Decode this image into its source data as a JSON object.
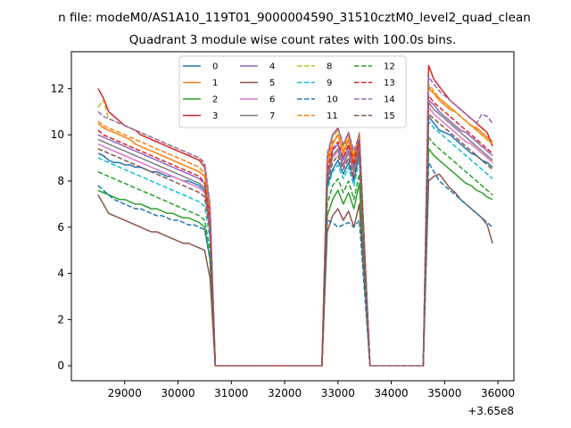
{
  "figure": {
    "suptitle": "n file: modeM0/AS1A10_119T01_9000004590_31510cztM0_level2_quad_clean",
    "axis_offset_label": "+3.65e8"
  },
  "chart_data": {
    "type": "line",
    "title": "Quadrant 3 module wise count rates with 100.0s bins.",
    "xlabel": "",
    "ylabel": "",
    "x_offset": 365000000,
    "xlim": [
      28000,
      36300
    ],
    "ylim": [
      -0.65,
      13.6
    ],
    "xticks": [
      29000,
      30000,
      31000,
      32000,
      33000,
      34000,
      35000,
      36000
    ],
    "yticks": [
      0,
      2,
      4,
      6,
      8,
      10,
      12
    ],
    "grid": false,
    "legend": {
      "placement": "top-center",
      "ncol": 4
    },
    "segments": [
      {
        "x_start": 28500,
        "x_end": 30600,
        "step": 100
      },
      {
        "x_start": 32800,
        "x_end": 33400,
        "step": 100
      },
      {
        "x_start": 34700,
        "x_end": 35900,
        "step": 100
      }
    ],
    "gap_points": [
      [
        30700,
        0
      ],
      [
        31000,
        0
      ],
      [
        32000,
        0
      ],
      [
        32700,
        0
      ],
      [
        33600,
        0
      ],
      [
        34000,
        0
      ],
      [
        34600,
        0
      ]
    ],
    "series": [
      {
        "name": "0",
        "color": "#1f77b4",
        "dash": "solid",
        "values": [
          [
            9.2,
            9.1,
            8.9,
            8.8,
            8.8,
            8.7,
            8.7,
            8.6,
            8.6,
            8.5,
            8.4,
            8.4,
            8.3,
            8.2,
            8.2,
            8.1,
            8.0,
            8.0,
            7.9,
            7.8,
            7.6,
            6.0
          ],
          [
            7.8,
            8.5,
            8.9,
            8.3,
            8.8,
            8.0,
            9.2
          ],
          [
            10.8,
            10.5,
            10.2,
            10.1,
            10.0,
            9.8,
            9.6,
            9.4,
            9.2,
            9.1,
            8.9,
            8.8,
            8.6
          ]
        ]
      },
      {
        "name": "1",
        "color": "#ff7f0e",
        "dash": "solid",
        "values": [
          [
            10.5,
            10.3,
            10.2,
            10.1,
            10.0,
            9.9,
            9.8,
            9.6,
            9.5,
            9.4,
            9.3,
            9.2,
            9.1,
            9.0,
            8.9,
            8.8,
            8.7,
            8.6,
            8.5,
            8.4,
            8.2,
            6.4
          ],
          [
            8.6,
            9.6,
            10.0,
            9.2,
            9.8,
            8.8,
            10.1
          ],
          [
            12.0,
            11.8,
            11.5,
            11.3,
            11.1,
            11.0,
            10.8,
            10.6,
            10.4,
            10.3,
            10.1,
            9.9,
            9.7
          ]
        ]
      },
      {
        "name": "2",
        "color": "#2ca02c",
        "dash": "solid",
        "values": [
          [
            7.6,
            7.5,
            7.4,
            7.3,
            7.2,
            7.2,
            7.1,
            7.0,
            7.0,
            6.9,
            6.8,
            6.8,
            6.7,
            6.6,
            6.6,
            6.5,
            6.4,
            6.4,
            6.3,
            6.2,
            6.0,
            4.6
          ],
          [
            6.5,
            7.2,
            7.6,
            7.0,
            7.5,
            6.8,
            7.9
          ],
          [
            9.4,
            9.1,
            8.9,
            8.7,
            8.5,
            8.3,
            8.1,
            7.9,
            7.8,
            7.6,
            7.5,
            7.3,
            7.2
          ]
        ]
      },
      {
        "name": "3",
        "color": "#d62728",
        "dash": "solid",
        "values": [
          [
            12.0,
            11.6,
            11.0,
            10.8,
            10.6,
            10.4,
            10.3,
            10.2,
            10.0,
            9.9,
            9.8,
            9.7,
            9.6,
            9.5,
            9.4,
            9.3,
            9.2,
            9.1,
            9.0,
            8.9,
            8.6,
            6.8
          ],
          [
            9.0,
            10.0,
            10.3,
            9.5,
            10.1,
            9.0,
            10.0
          ],
          [
            13.0,
            12.4,
            12.1,
            11.8,
            11.5,
            11.3,
            11.1,
            10.9,
            10.7,
            10.5,
            10.3,
            10.1,
            9.5
          ]
        ]
      },
      {
        "name": "4",
        "color": "#9467bd",
        "dash": "solid",
        "values": [
          [
            10.0,
            9.9,
            9.8,
            9.7,
            9.6,
            9.5,
            9.4,
            9.3,
            9.2,
            9.1,
            9.0,
            8.9,
            8.8,
            8.7,
            8.6,
            8.5,
            8.4,
            8.3,
            8.2,
            8.1,
            7.9,
            6.2
          ],
          [
            8.2,
            9.3,
            9.6,
            8.9,
            9.5,
            8.6,
            9.8
          ],
          [
            11.5,
            11.3,
            11.0,
            10.8,
            10.6,
            10.4,
            10.2,
            10.1,
            9.9,
            9.7,
            9.5,
            9.3,
            9.1
          ]
        ]
      },
      {
        "name": "5",
        "color": "#8c564b",
        "dash": "solid",
        "values": [
          [
            7.4,
            7.0,
            6.6,
            6.5,
            6.4,
            6.3,
            6.2,
            6.1,
            6.0,
            5.9,
            5.8,
            5.8,
            5.7,
            5.6,
            5.5,
            5.4,
            5.3,
            5.3,
            5.2,
            5.1,
            5.0,
            3.8
          ],
          [
            5.8,
            6.5,
            6.8,
            6.3,
            6.7,
            6.0,
            7.0
          ],
          [
            8.0,
            8.2,
            8.3,
            8.0,
            7.7,
            7.5,
            7.2,
            7.0,
            6.8,
            6.6,
            6.4,
            6.1,
            5.3
          ]
        ]
      },
      {
        "name": "6",
        "color": "#e377c2",
        "dash": "solid",
        "values": [
          [
            9.6,
            9.5,
            9.4,
            9.3,
            9.2,
            9.1,
            9.0,
            8.9,
            8.8,
            8.7,
            8.6,
            8.5,
            8.4,
            8.3,
            8.2,
            8.1,
            8.0,
            7.9,
            7.8,
            7.7,
            7.5,
            5.9
          ],
          [
            8.0,
            9.0,
            9.3,
            8.6,
            9.2,
            8.3,
            9.5
          ],
          [
            11.2,
            10.9,
            10.7,
            10.5,
            10.3,
            10.1,
            9.9,
            9.7,
            9.6,
            9.4,
            9.2,
            9.0,
            8.8
          ]
        ]
      },
      {
        "name": "7",
        "color": "#7f7f7f",
        "dash": "solid",
        "values": [
          [
            9.8,
            9.7,
            9.6,
            9.5,
            9.4,
            9.3,
            9.2,
            9.1,
            9.0,
            8.9,
            8.8,
            8.7,
            8.6,
            8.5,
            8.4,
            8.3,
            8.2,
            8.1,
            8.0,
            7.9,
            7.7,
            6.0
          ],
          [
            8.1,
            9.1,
            9.4,
            8.7,
            9.3,
            8.4,
            9.6
          ],
          [
            11.4,
            11.1,
            10.9,
            10.7,
            10.5,
            10.3,
            10.1,
            9.9,
            9.7,
            9.5,
            9.3,
            9.1,
            8.9
          ]
        ]
      },
      {
        "name": "8",
        "color": "#bcbd22",
        "dash": "dashed",
        "values": [
          [
            11.2,
            11.5,
            10.7,
            10.6,
            10.5,
            10.4,
            10.3,
            10.2,
            10.1,
            10.0,
            9.9,
            9.8,
            9.7,
            9.6,
            9.5,
            9.4,
            9.3,
            9.2,
            9.1,
            9.0,
            8.7,
            6.9
          ],
          [
            9.1,
            9.9,
            10.2,
            9.5,
            10.1,
            9.2,
            10.0
          ],
          [
            12.2,
            11.9,
            11.6,
            11.4,
            11.2,
            11.0,
            10.8,
            10.6,
            10.4,
            10.2,
            10.0,
            9.8,
            9.6
          ]
        ]
      },
      {
        "name": "9",
        "color": "#17becf",
        "dash": "dashed",
        "values": [
          [
            9.0,
            8.9,
            8.8,
            8.7,
            8.6,
            8.5,
            8.4,
            8.3,
            8.2,
            8.1,
            8.0,
            7.9,
            7.8,
            7.7,
            7.6,
            7.5,
            7.4,
            7.3,
            7.2,
            7.1,
            6.9,
            5.5
          ],
          [
            7.6,
            8.4,
            8.7,
            8.1,
            8.6,
            7.8,
            8.9
          ],
          [
            10.6,
            10.3,
            10.1,
            9.9,
            9.7,
            9.5,
            9.3,
            9.1,
            8.9,
            8.7,
            8.5,
            8.3,
            8.1
          ]
        ]
      },
      {
        "name": "10",
        "color": "#1f77b4",
        "dash": "dashed",
        "values": [
          [
            7.8,
            7.6,
            7.4,
            7.2,
            7.1,
            7.0,
            6.9,
            6.8,
            6.8,
            6.7,
            6.6,
            6.5,
            6.5,
            6.4,
            6.3,
            6.3,
            6.2,
            6.1,
            6.1,
            6.0,
            5.9,
            4.6
          ],
          [
            6.3,
            6.2,
            6.0,
            6.1,
            6.2,
            6.0,
            6.3
          ],
          [
            8.8,
            8.4,
            8.0,
            7.8,
            7.6,
            7.4,
            7.2,
            7.0,
            6.8,
            6.6,
            6.4,
            6.2,
            6.0
          ]
        ]
      },
      {
        "name": "11",
        "color": "#ff7f0e",
        "dash": "dashed",
        "values": [
          [
            10.6,
            10.4,
            10.3,
            10.2,
            10.1,
            10.0,
            9.9,
            9.8,
            9.7,
            9.6,
            9.5,
            9.4,
            9.3,
            9.2,
            9.1,
            9.0,
            8.9,
            8.8,
            8.7,
            8.6,
            8.3,
            6.6
          ],
          [
            8.8,
            9.7,
            10.0,
            9.3,
            9.9,
            9.0,
            10.1
          ],
          [
            12.1,
            11.8,
            11.6,
            11.4,
            11.2,
            11.0,
            10.8,
            10.6,
            10.4,
            10.2,
            10.0,
            9.8,
            9.6
          ]
        ]
      },
      {
        "name": "12",
        "color": "#2ca02c",
        "dash": "dashed",
        "values": [
          [
            8.4,
            8.3,
            8.2,
            8.1,
            8.0,
            7.9,
            7.8,
            7.7,
            7.6,
            7.5,
            7.4,
            7.3,
            7.2,
            7.1,
            7.0,
            6.9,
            6.8,
            6.7,
            6.6,
            6.5,
            6.3,
            5.0
          ],
          [
            7.0,
            7.8,
            8.1,
            7.5,
            8.0,
            7.2,
            8.3
          ],
          [
            9.9,
            9.6,
            9.4,
            9.2,
            9.0,
            8.8,
            8.6,
            8.4,
            8.2,
            8.0,
            7.8,
            7.6,
            7.4
          ]
        ]
      },
      {
        "name": "13",
        "color": "#d62728",
        "dash": "dashed",
        "values": [
          [
            10.2,
            10.0,
            9.9,
            9.8,
            9.7,
            9.6,
            9.5,
            9.4,
            9.3,
            9.2,
            9.1,
            9.0,
            8.9,
            8.8,
            8.7,
            8.6,
            8.5,
            8.4,
            8.3,
            8.2,
            7.9,
            6.3
          ],
          [
            8.4,
            9.4,
            9.7,
            9.0,
            9.6,
            8.7,
            9.8
          ],
          [
            11.7,
            11.4,
            11.2,
            11.0,
            10.8,
            10.6,
            10.4,
            10.2,
            10.0,
            9.8,
            9.6,
            9.4,
            9.2
          ]
        ]
      },
      {
        "name": "14",
        "color": "#9467bd",
        "dash": "dashed",
        "values": [
          [
            11.0,
            10.8,
            10.7,
            10.6,
            10.5,
            10.4,
            10.3,
            10.2,
            10.1,
            10.0,
            9.9,
            9.8,
            9.7,
            9.6,
            9.5,
            9.4,
            9.3,
            9.2,
            9.1,
            9.0,
            8.8,
            7.0
          ],
          [
            9.2,
            10.0,
            10.3,
            9.6,
            10.1,
            9.3,
            10.0
          ],
          [
            12.5,
            12.2,
            11.9,
            11.7,
            11.5,
            11.3,
            11.1,
            10.9,
            10.7,
            10.5,
            10.9,
            10.8,
            10.5
          ]
        ]
      },
      {
        "name": "15",
        "color": "#8c564b",
        "dash": "dashed",
        "values": [
          [
            9.4,
            9.3,
            9.2,
            9.1,
            9.0,
            8.9,
            8.8,
            8.7,
            8.6,
            8.5,
            8.4,
            8.3,
            8.2,
            8.1,
            8.0,
            7.9,
            7.8,
            7.7,
            7.6,
            7.5,
            7.3,
            5.8
          ],
          [
            7.9,
            8.8,
            9.1,
            8.5,
            9.0,
            8.1,
            9.3
          ],
          [
            10.9,
            10.7,
            10.5,
            10.3,
            10.1,
            9.9,
            9.7,
            9.5,
            9.3,
            9.1,
            8.9,
            8.7,
            8.5
          ]
        ]
      }
    ]
  }
}
